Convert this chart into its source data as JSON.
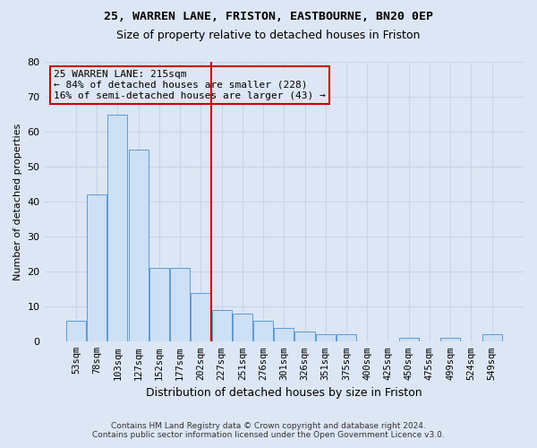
{
  "title1": "25, WARREN LANE, FRISTON, EASTBOURNE, BN20 0EP",
  "title2": "Size of property relative to detached houses in Friston",
  "xlabel": "Distribution of detached houses by size in Friston",
  "ylabel": "Number of detached properties",
  "categories": [
    "53sqm",
    "78sqm",
    "103sqm",
    "127sqm",
    "152sqm",
    "177sqm",
    "202sqm",
    "227sqm",
    "251sqm",
    "276sqm",
    "301sqm",
    "326sqm",
    "351sqm",
    "375sqm",
    "400sqm",
    "425sqm",
    "450sqm",
    "475sqm",
    "499sqm",
    "524sqm",
    "549sqm"
  ],
  "values": [
    6,
    42,
    65,
    55,
    21,
    21,
    14,
    9,
    8,
    6,
    4,
    3,
    2,
    2,
    0,
    0,
    1,
    0,
    1,
    0,
    2
  ],
  "bar_color": "#cde0f5",
  "bar_edge_color": "#5b9bd5",
  "grid_color": "#c8d4e8",
  "background_color": "#dce6f5",
  "vline_color": "#cc0000",
  "annotation_text": "25 WARREN LANE: 215sqm\n← 84% of detached houses are smaller (228)\n16% of semi-detached houses are larger (43) →",
  "annotation_box_color": "#cc0000",
  "footer1": "Contains HM Land Registry data © Crown copyright and database right 2024.",
  "footer2": "Contains public sector information licensed under the Open Government Licence v3.0.",
  "ylim": [
    0,
    80
  ],
  "yticks": [
    0,
    10,
    20,
    30,
    40,
    50,
    60,
    70,
    80
  ]
}
